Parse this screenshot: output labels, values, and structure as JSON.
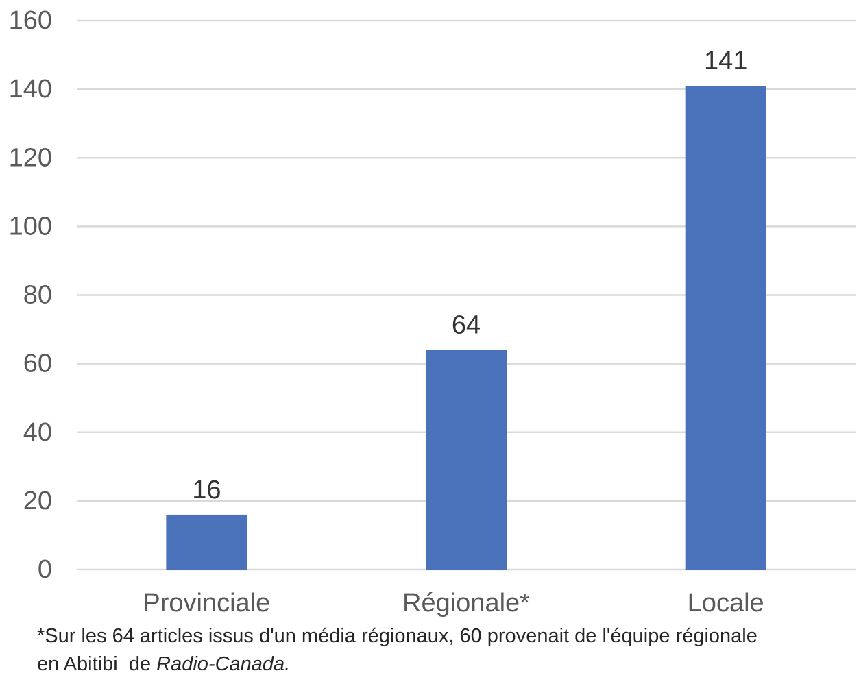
{
  "chart_data": {
    "type": "bar",
    "categories": [
      "Provinciale",
      "Régionale*",
      "Locale"
    ],
    "values": [
      16,
      64,
      141
    ],
    "data_labels": [
      "16",
      "64",
      "141"
    ],
    "title": "",
    "xlabel": "",
    "ylabel": "",
    "ylim": [
      0,
      160
    ],
    "yticks": [
      0,
      20,
      40,
      60,
      80,
      100,
      120,
      140,
      160
    ],
    "grid": true,
    "bar_color": "#4a72bb",
    "legend": "none"
  },
  "footnote": {
    "line1": "*Sur les 64 articles issus d'un média régionaux, 60 provenait de l'équipe régionale",
    "line2_prefix": "en Abitibi  de ",
    "line2_italic": "Radio-Canada."
  }
}
